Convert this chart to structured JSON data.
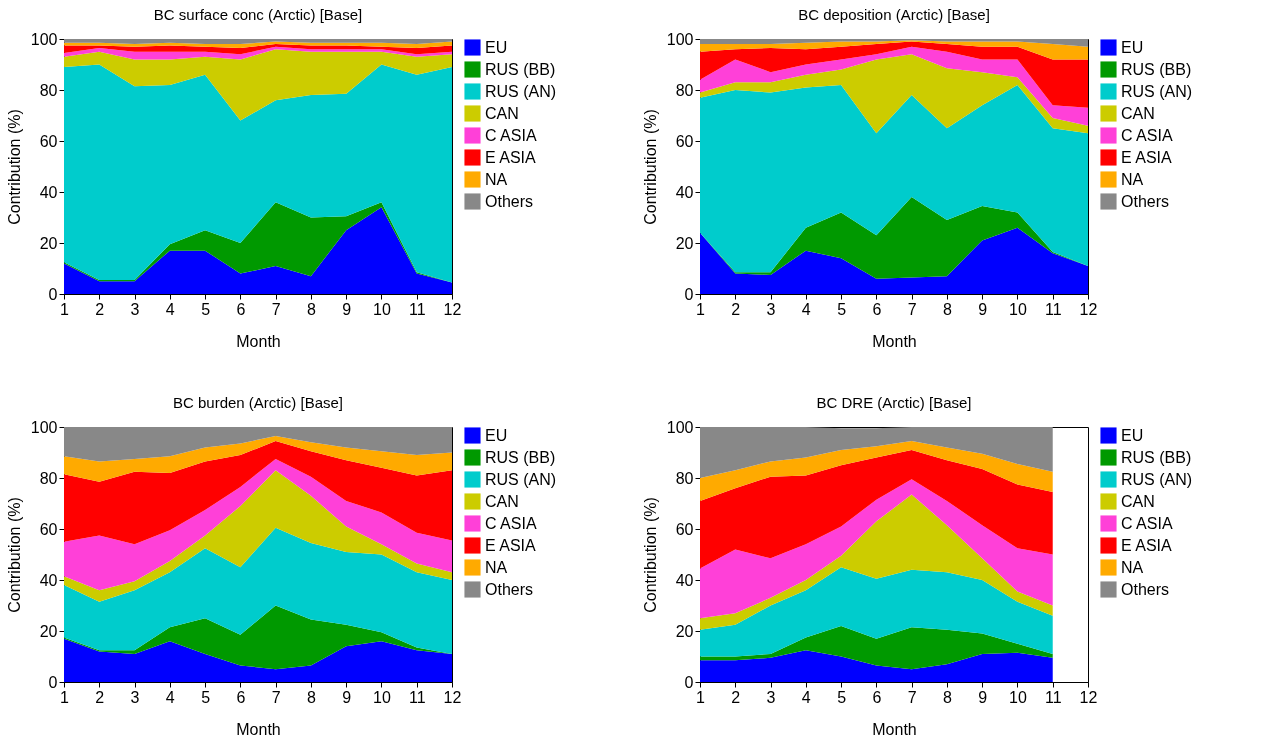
{
  "chart_data": [
    {
      "type": "area",
      "stacked": true,
      "title": "BC surface conc (Arctic) [Base]",
      "xlabel": "Month",
      "ylabel": "Contribution (%)",
      "x": [
        1,
        2,
        3,
        4,
        5,
        6,
        7,
        8,
        9,
        10,
        11,
        12
      ],
      "xlim": [
        1,
        12
      ],
      "xticks": [
        1,
        2,
        3,
        4,
        5,
        6,
        7,
        8,
        9,
        10,
        11,
        12
      ],
      "ylim": [
        0,
        100
      ],
      "yticks": [
        0,
        20,
        40,
        60,
        80,
        100
      ],
      "legend": "right",
      "series": [
        {
          "name": "EU",
          "color": "#0000ff",
          "values": [
            12,
            5,
            5,
            17,
            17,
            8,
            11,
            7,
            25,
            34,
            8,
            4.5
          ]
        },
        {
          "name": "RUS (BB)",
          "color": "#009900",
          "values": [
            0.5,
            0.5,
            0.5,
            2.5,
            8,
            12,
            25,
            23,
            5.5,
            2,
            0.5,
            0
          ]
        },
        {
          "name": "RUS (AN)",
          "color": "#00cccc",
          "values": [
            76.5,
            84.5,
            76,
            62.5,
            61,
            48,
            40,
            48,
            48,
            54,
            77.5,
            84.5
          ]
        },
        {
          "name": "CAN",
          "color": "#cccc00",
          "values": [
            4,
            5,
            10.5,
            10,
            7,
            24,
            20,
            17,
            16.5,
            5,
            7,
            5
          ]
        },
        {
          "name": "C ASIA",
          "color": "#ff40d8",
          "values": [
            1.5,
            1.5,
            3,
            3,
            2,
            2,
            1,
            1,
            1,
            1,
            1,
            1
          ]
        },
        {
          "name": "E ASIA",
          "color": "#ff0000",
          "values": [
            3,
            1,
            2,
            2.5,
            2,
            2.5,
            1,
            1.5,
            1.5,
            1,
            2.5,
            2.5
          ]
        },
        {
          "name": "NA",
          "color": "#ffaa00",
          "values": [
            1,
            1,
            1,
            1,
            1,
            1.5,
            1,
            1,
            1,
            1.5,
            1.5,
            1.5
          ]
        },
        {
          "name": "Others",
          "color": "#888888",
          "values": [
            1.5,
            1.5,
            2,
            1.5,
            2,
            2,
            1,
            1.5,
            1.5,
            1.5,
            2,
            1
          ]
        }
      ]
    },
    {
      "type": "area",
      "stacked": true,
      "title": "BC deposition (Arctic) [Base]",
      "xlabel": "Month",
      "ylabel": "Contribution (%)",
      "x": [
        1,
        2,
        3,
        4,
        5,
        6,
        7,
        8,
        9,
        10,
        11,
        12
      ],
      "xlim": [
        1,
        12
      ],
      "xticks": [
        1,
        2,
        3,
        4,
        5,
        6,
        7,
        8,
        9,
        10,
        11,
        12
      ],
      "ylim": [
        0,
        100
      ],
      "yticks": [
        0,
        20,
        40,
        60,
        80,
        100
      ],
      "legend": "right",
      "series": [
        {
          "name": "EU",
          "color": "#0000ff",
          "values": [
            24,
            8,
            7.5,
            17,
            14,
            6,
            6.5,
            7,
            21,
            26,
            16,
            11
          ]
        },
        {
          "name": "RUS (BB)",
          "color": "#009900",
          "values": [
            0,
            0.5,
            1,
            9,
            18,
            17,
            31.5,
            22,
            13.5,
            6,
            0.5,
            0
          ]
        },
        {
          "name": "RUS (AN)",
          "color": "#00cccc",
          "values": [
            53,
            71.5,
            70.5,
            55,
            50,
            40,
            40,
            36,
            39.5,
            50,
            48.5,
            52
          ]
        },
        {
          "name": "CAN",
          "color": "#cccc00",
          "values": [
            2,
            3,
            4,
            5,
            6,
            29,
            16,
            23.5,
            13,
            3,
            4,
            3
          ]
        },
        {
          "name": "C ASIA",
          "color": "#ff40d8",
          "values": [
            5,
            9,
            4,
            4,
            4,
            2,
            3,
            6.5,
            5,
            7,
            5,
            7
          ]
        },
        {
          "name": "E ASIA",
          "color": "#ff0000",
          "values": [
            11,
            4,
            9.5,
            6,
            5,
            4,
            2,
            3,
            5,
            5,
            18,
            19
          ]
        },
        {
          "name": "NA",
          "color": "#ffaa00",
          "values": [
            3,
            2,
            1.5,
            2.5,
            2,
            1,
            0.5,
            1,
            2,
            2,
            6,
            5
          ]
        },
        {
          "name": "Others",
          "color": "#888888",
          "values": [
            2,
            2,
            2,
            1.5,
            1,
            1,
            0.5,
            1,
            1,
            1,
            2,
            3
          ]
        }
      ]
    },
    {
      "type": "area",
      "stacked": true,
      "title": "BC burden (Arctic) [Base]",
      "xlabel": "Month",
      "ylabel": "Contribution (%)",
      "x": [
        1,
        2,
        3,
        4,
        5,
        6,
        7,
        8,
        9,
        10,
        11,
        12
      ],
      "xlim": [
        1,
        12
      ],
      "xticks": [
        1,
        2,
        3,
        4,
        5,
        6,
        7,
        8,
        9,
        10,
        11,
        12
      ],
      "ylim": [
        0,
        100
      ],
      "yticks": [
        0,
        20,
        40,
        60,
        80,
        100
      ],
      "legend": "right",
      "series": [
        {
          "name": "EU",
          "color": "#0000ff",
          "values": [
            17,
            12,
            11,
            16,
            11,
            6.5,
            5,
            6.5,
            14,
            16,
            12.5,
            11
          ]
        },
        {
          "name": "RUS (BB)",
          "color": "#009900",
          "values": [
            0.5,
            0.5,
            1.5,
            5.5,
            14,
            12,
            25,
            18,
            8.5,
            3.5,
            1,
            0
          ]
        },
        {
          "name": "RUS (AN)",
          "color": "#00cccc",
          "values": [
            20.5,
            19,
            23.5,
            21.5,
            27.5,
            26.5,
            30.5,
            30,
            28.5,
            30.5,
            29.5,
            29
          ]
        },
        {
          "name": "CAN",
          "color": "#cccc00",
          "values": [
            3.5,
            4.5,
            3.5,
            4.5,
            5,
            24,
            22.5,
            18.5,
            10,
            4,
            3.5,
            3
          ]
        },
        {
          "name": "C ASIA",
          "color": "#ff40d8",
          "values": [
            13.5,
            21.5,
            14.5,
            12,
            10,
            7.5,
            4.5,
            7.5,
            10,
            12.5,
            12,
            12.5
          ]
        },
        {
          "name": "E ASIA",
          "color": "#ff0000",
          "values": [
            26.5,
            21,
            28.5,
            22.5,
            19,
            12.5,
            7,
            10,
            16,
            17.5,
            22.5,
            27.5
          ]
        },
        {
          "name": "NA",
          "color": "#ffaa00",
          "values": [
            7,
            8,
            5,
            6.5,
            5.5,
            4.5,
            2,
            3.5,
            5,
            6.5,
            8,
            7
          ]
        },
        {
          "name": "Others",
          "color": "#888888",
          "values": [
            11.5,
            13.5,
            12.5,
            11.5,
            8,
            6.5,
            3.5,
            6,
            8,
            9.5,
            11,
            10
          ]
        }
      ]
    },
    {
      "type": "area",
      "stacked": true,
      "title": "BC DRE (Arctic) [Base]",
      "xlabel": "Month",
      "ylabel": "Contribution (%)",
      "x": [
        1,
        2,
        3,
        4,
        5,
        6,
        7,
        8,
        9,
        10,
        11
      ],
      "xlim": [
        1,
        12
      ],
      "xticks": [
        1,
        2,
        3,
        4,
        5,
        6,
        7,
        8,
        9,
        10,
        11,
        12
      ],
      "ylim": [
        0,
        100
      ],
      "yticks": [
        0,
        20,
        40,
        60,
        80,
        100
      ],
      "legend": "right",
      "series": [
        {
          "name": "EU",
          "color": "#0000ff",
          "values": [
            8.5,
            8.5,
            9.5,
            12.5,
            10,
            6.5,
            5,
            7,
            11,
            11.5,
            9.5
          ]
        },
        {
          "name": "RUS (BB)",
          "color": "#009900",
          "values": [
            1.5,
            1.5,
            1.5,
            5,
            12,
            10.5,
            16.5,
            13.5,
            8,
            3.5,
            1.5
          ]
        },
        {
          "name": "RUS (AN)",
          "color": "#00cccc",
          "values": [
            10.5,
            12.5,
            19,
            18.5,
            23,
            23.5,
            22.5,
            22.5,
            21,
            16.5,
            15
          ]
        },
        {
          "name": "CAN",
          "color": "#cccc00",
          "values": [
            4.5,
            4.5,
            3,
            4,
            4.5,
            22.5,
            29.5,
            18.5,
            8.5,
            4,
            4
          ]
        },
        {
          "name": "C ASIA",
          "color": "#ff40d8",
          "values": [
            19.5,
            25,
            15.5,
            14,
            11.5,
            8.5,
            6,
            9.5,
            13,
            17,
            20
          ]
        },
        {
          "name": "E ASIA",
          "color": "#ff0000",
          "values": [
            26.5,
            24,
            32,
            27,
            24,
            16.5,
            11.5,
            16,
            22,
            25,
            24.5
          ]
        },
        {
          "name": "NA",
          "color": "#ffaa00",
          "values": [
            9,
            7,
            6,
            7,
            6,
            4.5,
            3.5,
            5,
            6,
            8,
            8
          ]
        },
        {
          "name": "Others",
          "color": "#888888",
          "values": [
            20,
            17,
            13.5,
            12,
            8.5,
            7,
            5.5,
            8,
            10.5,
            14.5,
            17.5
          ]
        }
      ]
    }
  ]
}
